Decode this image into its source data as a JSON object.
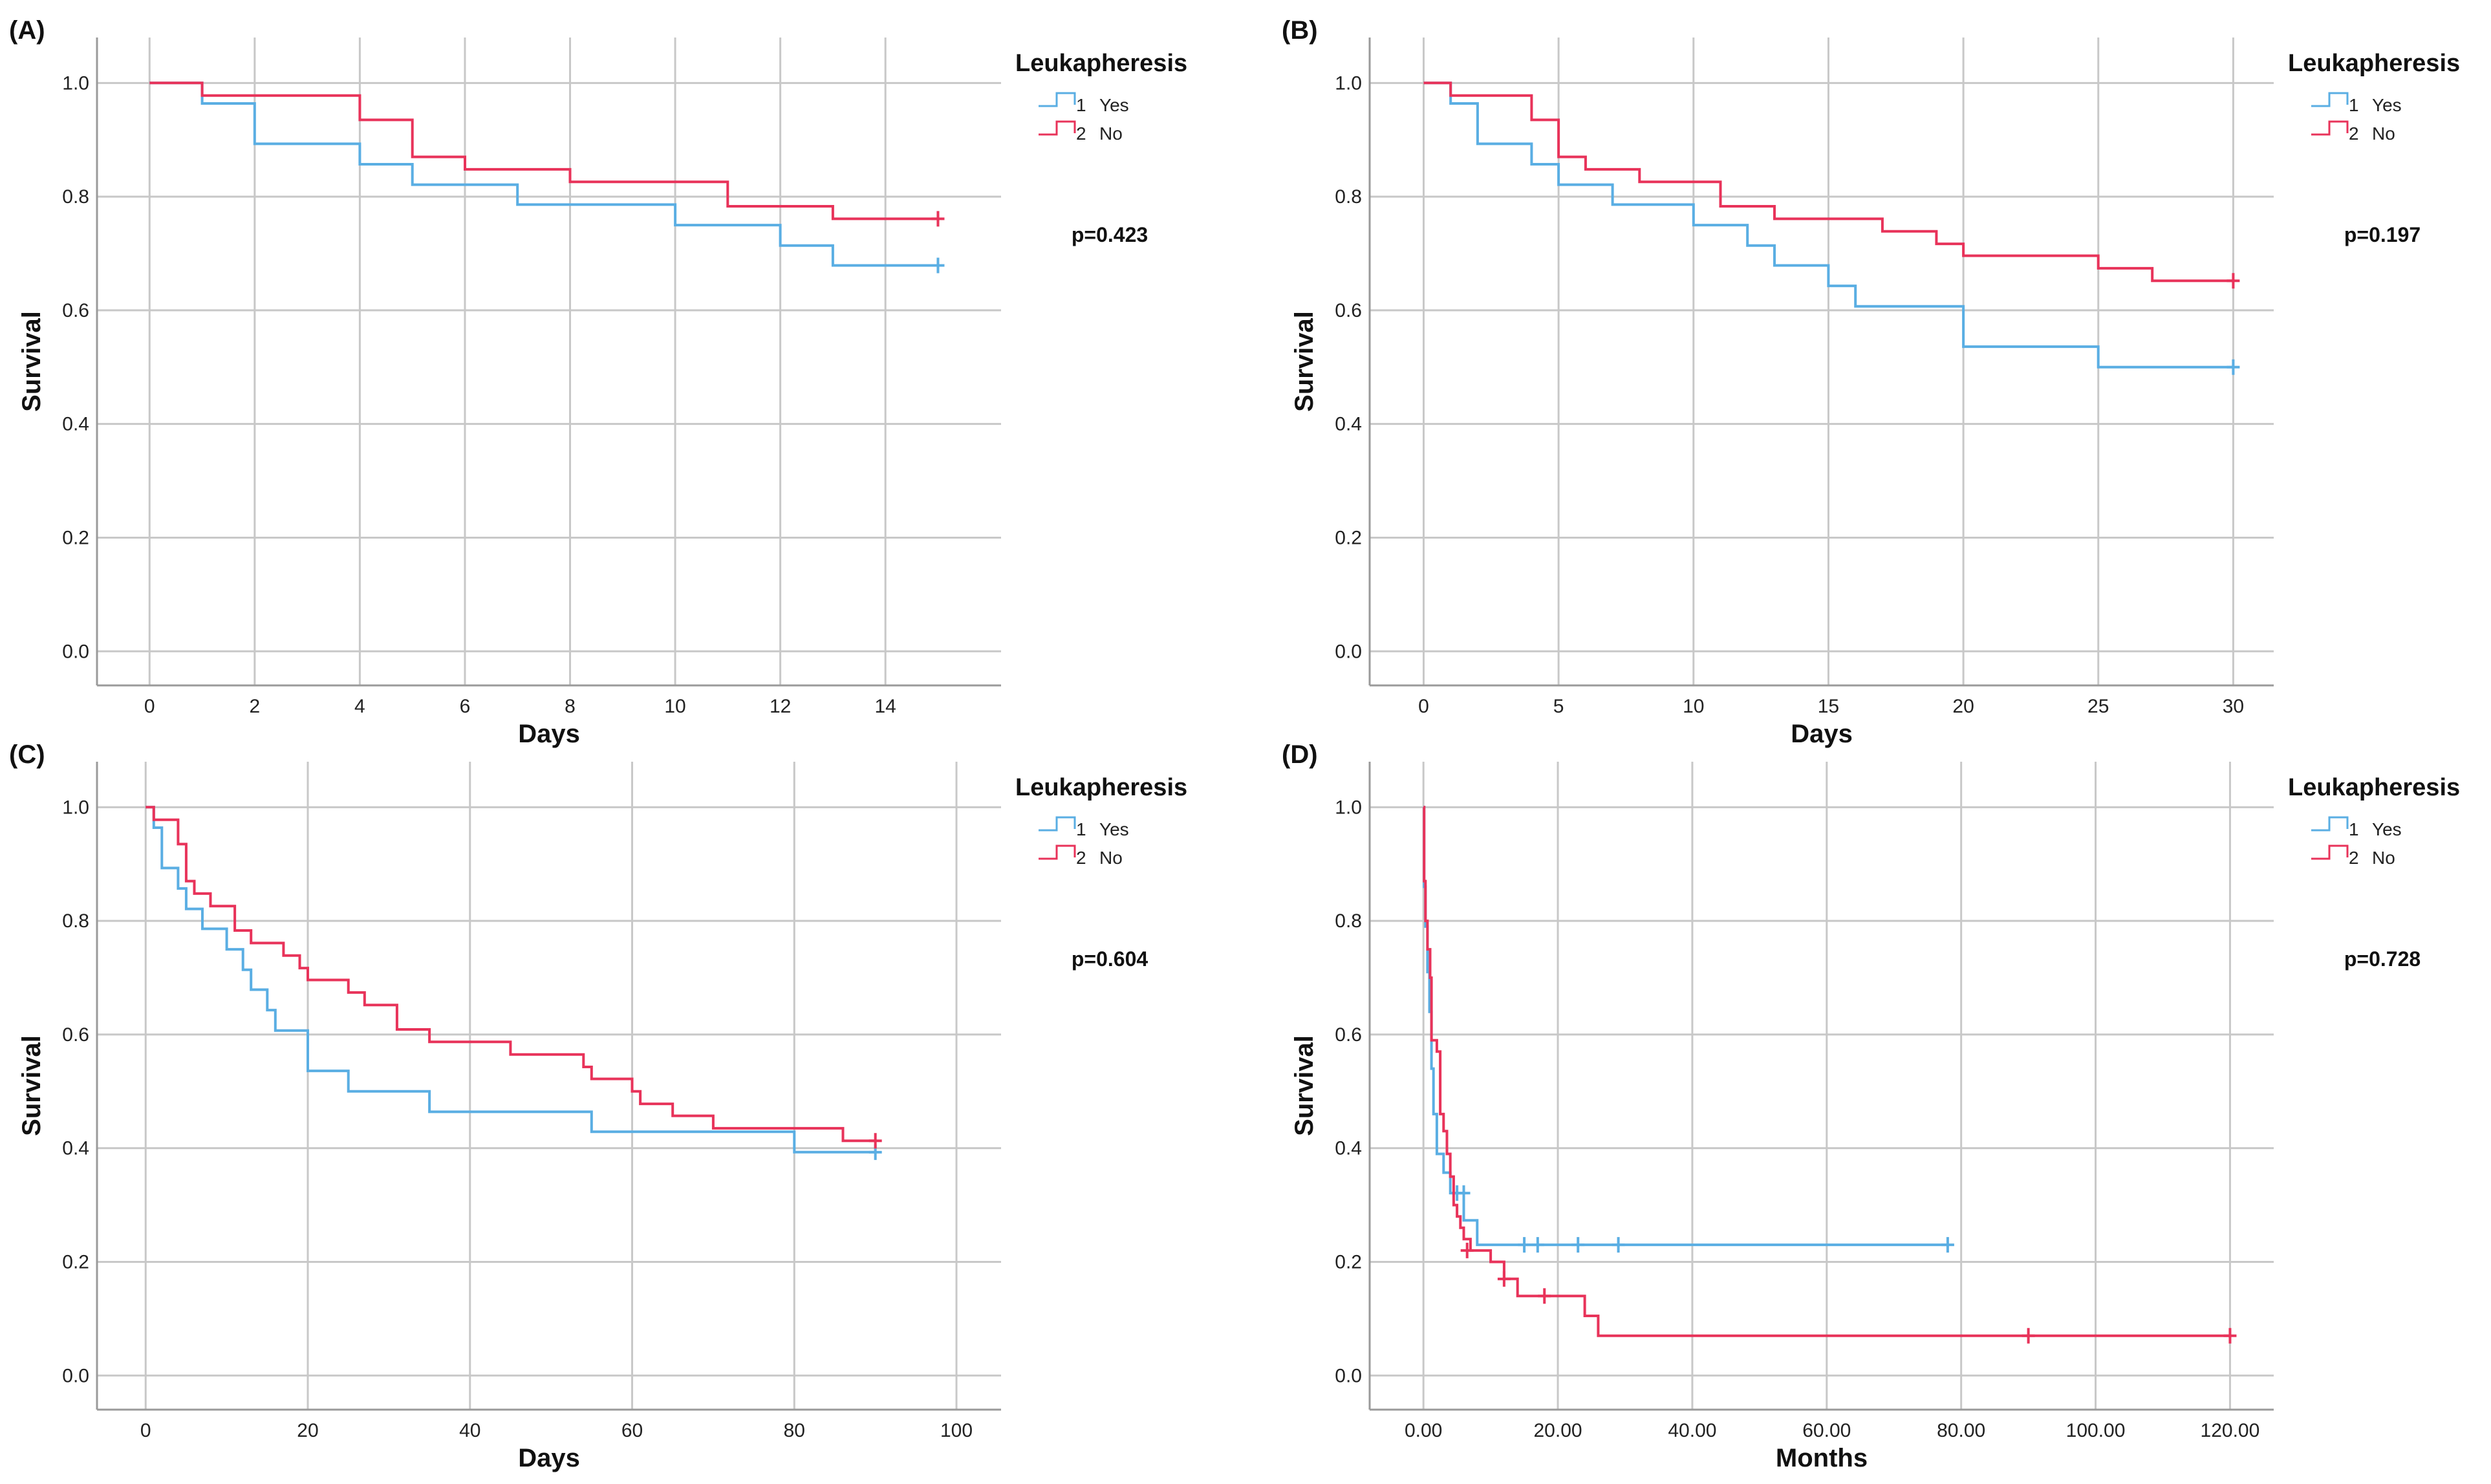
{
  "colors": {
    "yes": "#5aaee3",
    "no": "#e8335a",
    "grid": "#c8c8c8",
    "axis": "#9a9a9a"
  },
  "chart_data": [
    {
      "panel": "(A)",
      "type": "line",
      "subtype": "kaplan-meier",
      "xlabel": "Days",
      "ylabel": "Survival",
      "xlim": [
        -1,
        16.2
      ],
      "ylim": [
        -0.06,
        1.08
      ],
      "xticks": [
        0,
        2,
        4,
        6,
        8,
        10,
        12,
        14
      ],
      "xtick_labels": [
        "0",
        "2",
        "4",
        "6",
        "8",
        "10",
        "12",
        "14"
      ],
      "yticks": [
        0,
        0.2,
        0.4,
        0.6,
        0.8,
        1.0
      ],
      "ytick_labels": [
        "0.0",
        "0.2",
        "0.4",
        "0.6",
        "0.8",
        "1.0"
      ],
      "legend_title": "Leukapheresis",
      "legend_position": "top-right, outside plot",
      "p_value": "p=0.423",
      "series": [
        {
          "key": "yes",
          "name": "Yes",
          "number": "1",
          "steps": [
            [
              0,
              1.0
            ],
            [
              1,
              0.964
            ],
            [
              2,
              0.893
            ],
            [
              4,
              0.857
            ],
            [
              5,
              0.821
            ],
            [
              7,
              0.786
            ],
            [
              10,
              0.75
            ],
            [
              12,
              0.714
            ],
            [
              13,
              0.679
            ],
            [
              15,
              0.679
            ]
          ],
          "censored": [
            [
              15,
              0.679
            ]
          ]
        },
        {
          "key": "no",
          "name": "No",
          "number": "2",
          "steps": [
            [
              0,
              1.0
            ],
            [
              1,
              0.978
            ],
            [
              4,
              0.935
            ],
            [
              5,
              0.87
            ],
            [
              6,
              0.848
            ],
            [
              8,
              0.826
            ],
            [
              11,
              0.783
            ],
            [
              13,
              0.761
            ],
            [
              15,
              0.761
            ]
          ],
          "censored": [
            [
              15,
              0.761
            ]
          ]
        }
      ]
    },
    {
      "panel": "(B)",
      "type": "line",
      "subtype": "kaplan-meier",
      "xlabel": "Days",
      "ylabel": "Survival",
      "xlim": [
        -2,
        31.5
      ],
      "ylim": [
        -0.06,
        1.08
      ],
      "xticks": [
        0,
        5,
        10,
        15,
        20,
        25,
        30
      ],
      "xtick_labels": [
        "0",
        "5",
        "10",
        "15",
        "20",
        "25",
        "30"
      ],
      "yticks": [
        0,
        0.2,
        0.4,
        0.6,
        0.8,
        1.0
      ],
      "ytick_labels": [
        "0.0",
        "0.2",
        "0.4",
        "0.6",
        "0.8",
        "1.0"
      ],
      "legend_title": "Leukapheresis",
      "legend_position": "top-right, outside plot",
      "p_value": "p=0.197",
      "series": [
        {
          "key": "yes",
          "name": "Yes",
          "number": "1",
          "steps": [
            [
              0,
              1.0
            ],
            [
              1,
              0.964
            ],
            [
              2,
              0.893
            ],
            [
              4,
              0.857
            ],
            [
              5,
              0.821
            ],
            [
              7,
              0.786
            ],
            [
              10,
              0.75
            ],
            [
              12,
              0.714
            ],
            [
              13,
              0.679
            ],
            [
              15,
              0.643
            ],
            [
              16,
              0.607
            ],
            [
              20,
              0.536
            ],
            [
              25,
              0.5
            ],
            [
              30,
              0.5
            ]
          ],
          "censored": [
            [
              30,
              0.5
            ]
          ]
        },
        {
          "key": "no",
          "name": "No",
          "number": "2",
          "steps": [
            [
              0,
              1.0
            ],
            [
              1,
              0.978
            ],
            [
              4,
              0.935
            ],
            [
              5,
              0.87
            ],
            [
              6,
              0.848
            ],
            [
              8,
              0.826
            ],
            [
              11,
              0.783
            ],
            [
              13,
              0.761
            ],
            [
              17,
              0.739
            ],
            [
              19,
              0.717
            ],
            [
              20,
              0.696
            ],
            [
              25,
              0.674
            ],
            [
              27,
              0.652
            ],
            [
              30,
              0.652
            ]
          ],
          "censored": [
            [
              30,
              0.652
            ]
          ]
        }
      ]
    },
    {
      "panel": "(C)",
      "type": "line",
      "subtype": "kaplan-meier",
      "xlabel": "Days",
      "ylabel": "Survival",
      "xlim": [
        -6,
        105.5
      ],
      "ylim": [
        -0.06,
        1.08
      ],
      "xticks": [
        0,
        20,
        40,
        60,
        80,
        100
      ],
      "xtick_labels": [
        "0",
        "20",
        "40",
        "60",
        "80",
        "100"
      ],
      "yticks": [
        0,
        0.2,
        0.4,
        0.6,
        0.8,
        1.0
      ],
      "ytick_labels": [
        "0.0",
        "0.2",
        "0.4",
        "0.6",
        "0.8",
        "1.0"
      ],
      "legend_title": "Leukapheresis",
      "legend_position": "top-right, outside plot",
      "p_value": "p=0.604",
      "series": [
        {
          "key": "yes",
          "name": "Yes",
          "number": "1",
          "steps": [
            [
              0,
              1.0
            ],
            [
              1,
              0.964
            ],
            [
              2,
              0.893
            ],
            [
              4,
              0.857
            ],
            [
              5,
              0.821
            ],
            [
              7,
              0.786
            ],
            [
              10,
              0.75
            ],
            [
              12,
              0.714
            ],
            [
              13,
              0.679
            ],
            [
              15,
              0.643
            ],
            [
              16,
              0.607
            ],
            [
              20,
              0.536
            ],
            [
              25,
              0.5
            ],
            [
              35,
              0.464
            ],
            [
              55,
              0.429
            ],
            [
              80,
              0.393
            ],
            [
              90,
              0.393
            ]
          ],
          "censored": [
            [
              90,
              0.393
            ]
          ]
        },
        {
          "key": "no",
          "name": "No",
          "number": "2",
          "steps": [
            [
              0,
              1.0
            ],
            [
              1,
              0.978
            ],
            [
              4,
              0.935
            ],
            [
              5,
              0.87
            ],
            [
              6,
              0.848
            ],
            [
              8,
              0.826
            ],
            [
              11,
              0.783
            ],
            [
              13,
              0.761
            ],
            [
              17,
              0.739
            ],
            [
              19,
              0.717
            ],
            [
              20,
              0.696
            ],
            [
              25,
              0.674
            ],
            [
              27,
              0.652
            ],
            [
              31,
              0.609
            ],
            [
              35,
              0.587
            ],
            [
              45,
              0.565
            ],
            [
              54,
              0.543
            ],
            [
              55,
              0.522
            ],
            [
              60,
              0.5
            ],
            [
              61,
              0.478
            ],
            [
              65,
              0.457
            ],
            [
              70,
              0.435
            ],
            [
              86,
              0.413
            ],
            [
              90,
              0.413
            ]
          ],
          "censored": [
            [
              90,
              0.413
            ]
          ]
        }
      ]
    },
    {
      "panel": "(D)",
      "type": "line",
      "subtype": "kaplan-meier",
      "xlabel": "Months",
      "ylabel": "Survival",
      "xlim": [
        -8,
        126.5
      ],
      "ylim": [
        -0.06,
        1.08
      ],
      "xticks": [
        0,
        20,
        40,
        60,
        80,
        100,
        120
      ],
      "xtick_labels": [
        "0.00",
        "20.00",
        "40.00",
        "60.00",
        "80.00",
        "100.00",
        "120.00"
      ],
      "yticks": [
        0,
        0.2,
        0.4,
        0.6,
        0.8,
        1.0
      ],
      "ytick_labels": [
        "0.0",
        "0.2",
        "0.4",
        "0.6",
        "0.8",
        "1.0"
      ],
      "legend_title": "Leukapheresis",
      "legend_position": "top-right, outside plot",
      "p_value": "p=0.728",
      "series": [
        {
          "key": "yes",
          "name": "Yes",
          "number": "1",
          "steps": [
            [
              0,
              1.0
            ],
            [
              0.1,
              0.86
            ],
            [
              0.3,
              0.79
            ],
            [
              0.6,
              0.71
            ],
            [
              0.9,
              0.64
            ],
            [
              1.2,
              0.54
            ],
            [
              1.5,
              0.46
            ],
            [
              2.0,
              0.39
            ],
            [
              3.0,
              0.357
            ],
            [
              4.0,
              0.321
            ],
            [
              6.0,
              0.273
            ],
            [
              8.0,
              0.23
            ],
            [
              78,
              0.23
            ]
          ],
          "censored": [
            [
              5,
              0.321
            ],
            [
              6,
              0.321
            ],
            [
              15,
              0.23
            ],
            [
              17,
              0.23
            ],
            [
              23,
              0.23
            ],
            [
              29,
              0.23
            ],
            [
              78,
              0.23
            ]
          ]
        },
        {
          "key": "no",
          "name": "No",
          "number": "2",
          "steps": [
            [
              0,
              1.0
            ],
            [
              0.1,
              0.87
            ],
            [
              0.3,
              0.8
            ],
            [
              0.6,
              0.75
            ],
            [
              1.0,
              0.7
            ],
            [
              1.2,
              0.59
            ],
            [
              2.0,
              0.57
            ],
            [
              2.5,
              0.46
            ],
            [
              3.0,
              0.43
            ],
            [
              3.5,
              0.39
            ],
            [
              4.0,
              0.35
            ],
            [
              4.5,
              0.3
            ],
            [
              5.0,
              0.28
            ],
            [
              5.5,
              0.26
            ],
            [
              6.0,
              0.24
            ],
            [
              7.0,
              0.22
            ],
            [
              10.0,
              0.2
            ],
            [
              12.0,
              0.17
            ],
            [
              14.0,
              0.14
            ],
            [
              24.0,
              0.105
            ],
            [
              26.0,
              0.07
            ],
            [
              120,
              0.07
            ]
          ],
          "censored": [
            [
              6.5,
              0.22
            ],
            [
              12,
              0.17
            ],
            [
              18,
              0.14
            ],
            [
              90,
              0.07
            ],
            [
              120,
              0.07
            ]
          ]
        }
      ]
    }
  ]
}
